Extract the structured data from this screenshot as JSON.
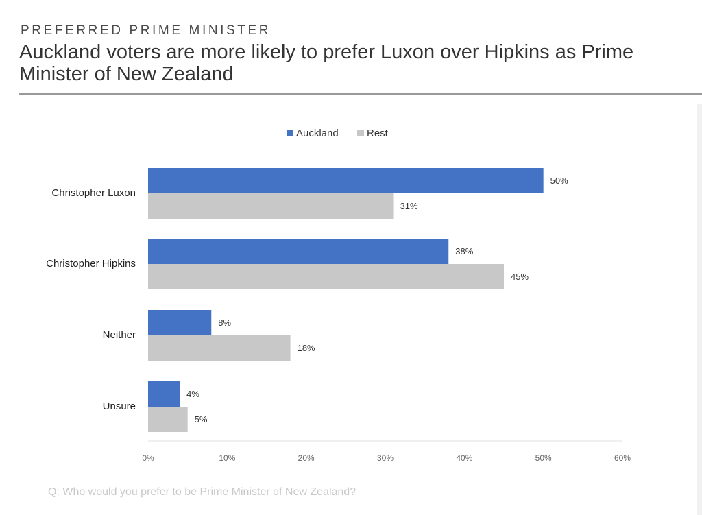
{
  "header": {
    "kicker": "PREFERRED PRIME MINISTER",
    "headline": "Auckland voters are more likely to prefer Luxon over Hipkins as Prime Minister of New Zealand"
  },
  "footnote": "Q: Who would you prefer to be Prime Minister of New Zealand?",
  "colors": {
    "auckland": "#4472c4",
    "rest": "#c8c8c8"
  },
  "chart_data": {
    "type": "bar",
    "orientation": "horizontal",
    "categories": [
      "Christopher Luxon",
      "Christopher Hipkins",
      "Neither",
      "Unsure"
    ],
    "series": [
      {
        "name": "Auckland",
        "values": [
          50,
          38,
          8,
          4
        ],
        "labels": [
          "50%",
          "38%",
          "8%",
          "4%"
        ]
      },
      {
        "name": "Rest",
        "values": [
          31,
          45,
          18,
          5
        ],
        "labels": [
          "31%",
          "45%",
          "18%",
          "5%"
        ]
      }
    ],
    "xlim": [
      0,
      60
    ],
    "xticks": [
      0,
      10,
      20,
      30,
      40,
      50,
      60
    ],
    "xtick_labels": [
      "0%",
      "10%",
      "20%",
      "30%",
      "40%",
      "50%",
      "60%"
    ],
    "legend_position": "top-center",
    "grid": false
  }
}
